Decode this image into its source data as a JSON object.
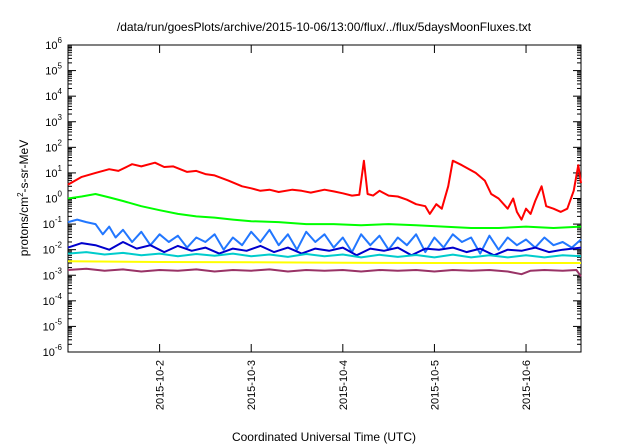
{
  "chart_data": {
    "type": "line",
    "title": "/data/run/goesPlots/archive/2015-10-06/13:00/flux/../flux/5daysMoonFluxes.txt",
    "xlabel": "Coordinated Universal Time (UTC)",
    "ylabel": {
      "prefix": "protons/cm",
      "sup": "2",
      "suffix": "-s-sr-MeV"
    },
    "yscale": "log",
    "ylim": [
      1e-06,
      1000000.0
    ],
    "xlim": [
      0,
      5.6
    ],
    "y_ticks": [
      {
        "value": -6,
        "base": "10",
        "exp": "-6"
      },
      {
        "value": -5,
        "base": "10",
        "exp": "-5"
      },
      {
        "value": -4,
        "base": "10",
        "exp": "-4"
      },
      {
        "value": -3,
        "base": "10",
        "exp": "-3"
      },
      {
        "value": -2,
        "base": "10",
        "exp": "-2"
      },
      {
        "value": -1,
        "base": "10",
        "exp": "-1"
      },
      {
        "value": 0,
        "base": "10",
        "exp": "0"
      },
      {
        "value": 1,
        "base": "10",
        "exp": "1"
      },
      {
        "value": 2,
        "base": "10",
        "exp": "2"
      },
      {
        "value": 3,
        "base": "10",
        "exp": "3"
      },
      {
        "value": 4,
        "base": "10",
        "exp": "4"
      },
      {
        "value": 5,
        "base": "10",
        "exp": "5"
      },
      {
        "value": 6,
        "base": "10",
        "exp": "6"
      }
    ],
    "x_ticks": [
      {
        "value": 1,
        "label": "2015-10-2"
      },
      {
        "value": 2,
        "label": "2015-10-3"
      },
      {
        "value": 3,
        "label": "2015-10-4"
      },
      {
        "value": 4,
        "label": "2015-10-5"
      },
      {
        "value": 5,
        "label": "2015-10-6"
      }
    ],
    "grid": false,
    "series": [
      {
        "color": "#ff0000",
        "points": [
          [
            0.0,
            3.5
          ],
          [
            0.15,
            7.0
          ],
          [
            0.3,
            10.0
          ],
          [
            0.45,
            14.0
          ],
          [
            0.55,
            12.0
          ],
          [
            0.7,
            22.0
          ],
          [
            0.8,
            18.0
          ],
          [
            0.95,
            25.0
          ],
          [
            1.05,
            17.0
          ],
          [
            1.15,
            18.0
          ],
          [
            1.3,
            11.0
          ],
          [
            1.4,
            12.0
          ],
          [
            1.5,
            9.0
          ],
          [
            1.6,
            8.0
          ],
          [
            1.75,
            5.0
          ],
          [
            1.9,
            3.0
          ],
          [
            2.0,
            2.5
          ],
          [
            2.1,
            2.0
          ],
          [
            2.2,
            2.2
          ],
          [
            2.3,
            1.8
          ],
          [
            2.45,
            2.2
          ],
          [
            2.55,
            2.0
          ],
          [
            2.65,
            1.7
          ],
          [
            2.8,
            2.2
          ],
          [
            2.9,
            1.9
          ],
          [
            3.0,
            1.6
          ],
          [
            3.1,
            1.3
          ],
          [
            3.18,
            1.4
          ],
          [
            3.23,
            30.0
          ],
          [
            3.27,
            1.5
          ],
          [
            3.33,
            1.3
          ],
          [
            3.4,
            2.0
          ],
          [
            3.5,
            1.3
          ],
          [
            3.6,
            1.2
          ],
          [
            3.7,
            0.9
          ],
          [
            3.8,
            0.6
          ],
          [
            3.9,
            0.5
          ],
          [
            3.95,
            0.25
          ],
          [
            4.02,
            0.6
          ],
          [
            4.08,
            0.4
          ],
          [
            4.15,
            3.0
          ],
          [
            4.2,
            30.0
          ],
          [
            4.3,
            20.0
          ],
          [
            4.45,
            10.0
          ],
          [
            4.55,
            5.0
          ],
          [
            4.62,
            1.5
          ],
          [
            4.7,
            1.0
          ],
          [
            4.8,
            0.4
          ],
          [
            4.86,
            1.0
          ],
          [
            4.9,
            0.3
          ],
          [
            4.95,
            0.15
          ],
          [
            5.0,
            0.4
          ],
          [
            5.05,
            0.25
          ],
          [
            5.1,
            0.8
          ],
          [
            5.17,
            3.0
          ],
          [
            5.22,
            0.5
          ],
          [
            5.3,
            0.4
          ],
          [
            5.38,
            0.3
          ],
          [
            5.45,
            0.4
          ],
          [
            5.52,
            2.0
          ],
          [
            5.57,
            20.0
          ],
          [
            5.6,
            4.0
          ]
        ]
      },
      {
        "color": "#00ff00",
        "points": [
          [
            0.0,
            1.0
          ],
          [
            0.15,
            1.2
          ],
          [
            0.3,
            1.5
          ],
          [
            0.45,
            1.1
          ],
          [
            0.6,
            0.8
          ],
          [
            0.8,
            0.5
          ],
          [
            1.0,
            0.35
          ],
          [
            1.2,
            0.25
          ],
          [
            1.4,
            0.2
          ],
          [
            1.6,
            0.18
          ],
          [
            1.8,
            0.15
          ],
          [
            2.0,
            0.13
          ],
          [
            2.3,
            0.12
          ],
          [
            2.6,
            0.1
          ],
          [
            2.9,
            0.1
          ],
          [
            3.2,
            0.09
          ],
          [
            3.5,
            0.1
          ],
          [
            3.8,
            0.09
          ],
          [
            4.1,
            0.08
          ],
          [
            4.4,
            0.07
          ],
          [
            4.7,
            0.07
          ],
          [
            5.0,
            0.08
          ],
          [
            5.3,
            0.07
          ],
          [
            5.6,
            0.08
          ]
        ]
      },
      {
        "color": "#2277ff",
        "points": [
          [
            0.0,
            0.12
          ],
          [
            0.1,
            0.15
          ],
          [
            0.2,
            0.12
          ],
          [
            0.3,
            0.1
          ],
          [
            0.38,
            0.04
          ],
          [
            0.45,
            0.08
          ],
          [
            0.52,
            0.03
          ],
          [
            0.6,
            0.06
          ],
          [
            0.7,
            0.02
          ],
          [
            0.8,
            0.05
          ],
          [
            0.9,
            0.015
          ],
          [
            1.0,
            0.04
          ],
          [
            1.1,
            0.02
          ],
          [
            1.2,
            0.035
          ],
          [
            1.3,
            0.012
          ],
          [
            1.4,
            0.03
          ],
          [
            1.5,
            0.02
          ],
          [
            1.6,
            0.04
          ],
          [
            1.7,
            0.01
          ],
          [
            1.8,
            0.03
          ],
          [
            1.9,
            0.015
          ],
          [
            2.0,
            0.05
          ],
          [
            2.1,
            0.02
          ],
          [
            2.2,
            0.06
          ],
          [
            2.3,
            0.015
          ],
          [
            2.4,
            0.04
          ],
          [
            2.5,
            0.01
          ],
          [
            2.6,
            0.05
          ],
          [
            2.7,
            0.02
          ],
          [
            2.8,
            0.04
          ],
          [
            2.9,
            0.012
          ],
          [
            3.0,
            0.03
          ],
          [
            3.1,
            0.008
          ],
          [
            3.2,
            0.04
          ],
          [
            3.3,
            0.015
          ],
          [
            3.4,
            0.035
          ],
          [
            3.5,
            0.01
          ],
          [
            3.6,
            0.03
          ],
          [
            3.7,
            0.015
          ],
          [
            3.8,
            0.04
          ],
          [
            3.9,
            0.008
          ],
          [
            4.0,
            0.03
          ],
          [
            4.1,
            0.012
          ],
          [
            4.2,
            0.04
          ],
          [
            4.3,
            0.02
          ],
          [
            4.4,
            0.03
          ],
          [
            4.5,
            0.007
          ],
          [
            4.6,
            0.035
          ],
          [
            4.7,
            0.01
          ],
          [
            4.8,
            0.03
          ],
          [
            4.9,
            0.015
          ],
          [
            5.0,
            0.025
          ],
          [
            5.1,
            0.012
          ],
          [
            5.2,
            0.03
          ],
          [
            5.3,
            0.015
          ],
          [
            5.4,
            0.02
          ],
          [
            5.5,
            0.012
          ],
          [
            5.6,
            0.025
          ]
        ]
      },
      {
        "color": "#0000cc",
        "points": [
          [
            0.0,
            0.012
          ],
          [
            0.15,
            0.018
          ],
          [
            0.3,
            0.015
          ],
          [
            0.45,
            0.01
          ],
          [
            0.6,
            0.02
          ],
          [
            0.75,
            0.011
          ],
          [
            0.9,
            0.015
          ],
          [
            1.05,
            0.008
          ],
          [
            1.2,
            0.014
          ],
          [
            1.35,
            0.009
          ],
          [
            1.5,
            0.012
          ],
          [
            1.65,
            0.007
          ],
          [
            1.8,
            0.011
          ],
          [
            1.95,
            0.009
          ],
          [
            2.1,
            0.014
          ],
          [
            2.25,
            0.008
          ],
          [
            2.4,
            0.012
          ],
          [
            2.55,
            0.007
          ],
          [
            2.7,
            0.011
          ],
          [
            2.85,
            0.009
          ],
          [
            3.0,
            0.012
          ],
          [
            3.15,
            0.006
          ],
          [
            3.3,
            0.011
          ],
          [
            3.45,
            0.009
          ],
          [
            3.6,
            0.012
          ],
          [
            3.75,
            0.006
          ],
          [
            3.9,
            0.011
          ],
          [
            4.05,
            0.01
          ],
          [
            4.2,
            0.012
          ],
          [
            4.35,
            0.008
          ],
          [
            4.5,
            0.011
          ],
          [
            4.65,
            0.006
          ],
          [
            4.8,
            0.01
          ],
          [
            4.95,
            0.009
          ],
          [
            5.1,
            0.012
          ],
          [
            5.25,
            0.008
          ],
          [
            5.4,
            0.01
          ],
          [
            5.6,
            0.012
          ]
        ]
      },
      {
        "color": "#00cccc",
        "points": [
          [
            0.0,
            0.007
          ],
          [
            0.2,
            0.008
          ],
          [
            0.4,
            0.0065
          ],
          [
            0.6,
            0.0075
          ],
          [
            0.8,
            0.006
          ],
          [
            1.0,
            0.007
          ],
          [
            1.2,
            0.0055
          ],
          [
            1.4,
            0.0068
          ],
          [
            1.6,
            0.0058
          ],
          [
            1.8,
            0.007
          ],
          [
            2.0,
            0.0055
          ],
          [
            2.2,
            0.0065
          ],
          [
            2.4,
            0.0052
          ],
          [
            2.6,
            0.0068
          ],
          [
            2.8,
            0.0055
          ],
          [
            3.0,
            0.0065
          ],
          [
            3.2,
            0.005
          ],
          [
            3.4,
            0.0063
          ],
          [
            3.6,
            0.0052
          ],
          [
            3.8,
            0.0062
          ],
          [
            4.0,
            0.005
          ],
          [
            4.2,
            0.0064
          ],
          [
            4.4,
            0.005
          ],
          [
            4.6,
            0.006
          ],
          [
            4.8,
            0.005
          ],
          [
            5.0,
            0.006
          ],
          [
            5.2,
            0.005
          ],
          [
            5.4,
            0.006
          ],
          [
            5.6,
            0.0055
          ]
        ]
      },
      {
        "color": "#ffff00",
        "points": [
          [
            0.0,
            0.0035
          ],
          [
            1.0,
            0.0033
          ],
          [
            2.0,
            0.0032
          ],
          [
            3.0,
            0.0031
          ],
          [
            4.0,
            0.003
          ],
          [
            5.0,
            0.003
          ],
          [
            5.6,
            0.003
          ]
        ]
      },
      {
        "color": "#993366",
        "points": [
          [
            0.0,
            0.0016
          ],
          [
            0.2,
            0.0018
          ],
          [
            0.4,
            0.0015
          ],
          [
            0.6,
            0.0017
          ],
          [
            0.8,
            0.0014
          ],
          [
            1.0,
            0.0016
          ],
          [
            1.2,
            0.0015
          ],
          [
            1.4,
            0.0017
          ],
          [
            1.6,
            0.0014
          ],
          [
            1.8,
            0.0016
          ],
          [
            2.0,
            0.0015
          ],
          [
            2.2,
            0.0017
          ],
          [
            2.4,
            0.0014
          ],
          [
            2.6,
            0.0016
          ],
          [
            2.8,
            0.0015
          ],
          [
            3.0,
            0.0016
          ],
          [
            3.2,
            0.0014
          ],
          [
            3.4,
            0.0016
          ],
          [
            3.6,
            0.0015
          ],
          [
            3.8,
            0.0016
          ],
          [
            4.0,
            0.0014
          ],
          [
            4.2,
            0.0016
          ],
          [
            4.4,
            0.0015
          ],
          [
            4.6,
            0.0016
          ],
          [
            4.8,
            0.0014
          ],
          [
            4.95,
            0.0011
          ],
          [
            5.05,
            0.0015
          ],
          [
            5.2,
            0.0016
          ],
          [
            5.4,
            0.0015
          ],
          [
            5.55,
            0.0016
          ],
          [
            5.6,
            0.0009
          ]
        ]
      }
    ]
  }
}
